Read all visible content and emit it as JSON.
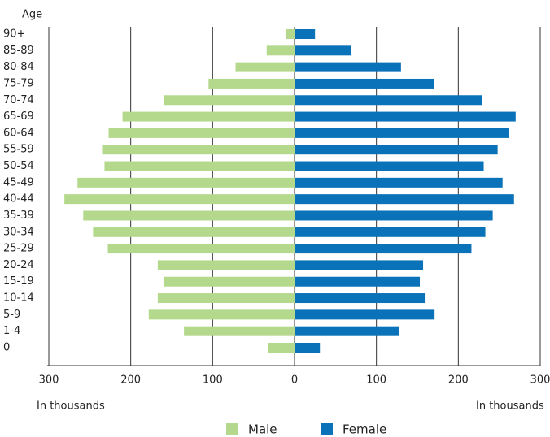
{
  "chart_data": {
    "type": "pyramid",
    "y_label": "Age",
    "categories": [
      "90+",
      "85-89",
      "80-84",
      "75-79",
      "70-74",
      "65-69",
      "60-64",
      "55-59",
      "50-54",
      "45-49",
      "40-44",
      "35-39",
      "30-34",
      "25-29",
      "20-24",
      "15-19",
      "10-14",
      "5-9",
      "1-4",
      "0"
    ],
    "series": [
      {
        "name": "Male",
        "color": "#b5d98c",
        "side": "left",
        "values": [
          11,
          34,
          72,
          105,
          159,
          210,
          227,
          235,
          232,
          265,
          281,
          258,
          246,
          228,
          167,
          160,
          167,
          178,
          135,
          32
        ]
      },
      {
        "name": "Female",
        "color": "#0a72b8",
        "side": "right",
        "values": [
          25,
          69,
          130,
          170,
          229,
          270,
          262,
          248,
          231,
          254,
          268,
          242,
          233,
          216,
          157,
          153,
          159,
          171,
          128,
          31
        ]
      }
    ],
    "xlim": [
      -300,
      300
    ],
    "xticks": [
      {
        "value": -300,
        "label": "300"
      },
      {
        "value": -200,
        "label": "200"
      },
      {
        "value": -100,
        "label": "100"
      },
      0,
      100,
      200,
      300
    ],
    "x_label_left": "In thousands",
    "x_label_right": "In thousands",
    "grid": true
  }
}
